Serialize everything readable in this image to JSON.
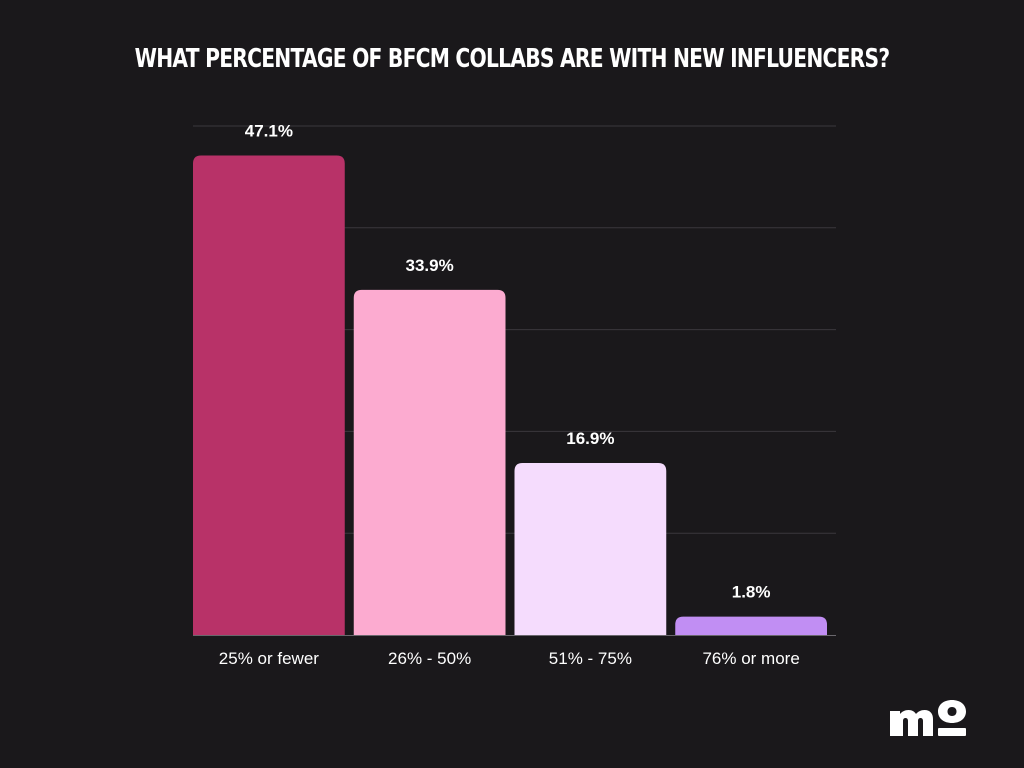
{
  "chart_data": {
    "type": "bar",
    "title": "WHAT PERCENTAGE OF BFCM COLLABS ARE WITH NEW INFLUENCERS?",
    "categories": [
      "25% or fewer",
      "26% - 50%",
      "51% - 75%",
      "76% or more"
    ],
    "values": [
      47.1,
      33.9,
      16.9,
      1.8
    ],
    "value_labels": [
      "47.1%",
      "33.9%",
      "16.9%",
      "1.8%"
    ],
    "colors": [
      "#b83268",
      "#fcabd0",
      "#f5dcfd",
      "#c18ef3"
    ],
    "ylim": [
      0,
      50
    ],
    "gridlines": true,
    "legend": "none"
  },
  "logo": {
    "name": "mo-logo-icon",
    "color": "#ffffff"
  },
  "theme": {
    "background": "#1a181b",
    "gridline": "#3a373c",
    "axis": "#6a676d",
    "text": "#ffffff"
  }
}
